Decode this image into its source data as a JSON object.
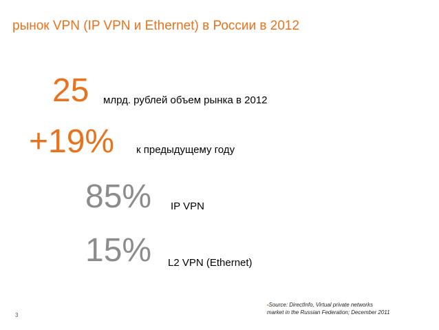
{
  "slide": {
    "title": "рынок VPN (IP VPN и Ethernet) в России в 2012",
    "stats": [
      {
        "value": "25",
        "label": "млрд. рублей объем рынка в 2012"
      },
      {
        "value": "+19%",
        "label": "к предыдущему году"
      },
      {
        "value": "85%",
        "label": "IP VPN"
      },
      {
        "value": "15%",
        "label": "L2 VPN (Ethernet)"
      }
    ],
    "source": {
      "bullet": "▪",
      "line1": "Source: DirectInfo, Virtual private networks",
      "line2": "market  in the Russian Federation; December 2011"
    },
    "page_number": "3",
    "colors": {
      "accent": "#e8731c",
      "muted": "#8c8c8c",
      "text": "#000000"
    }
  }
}
